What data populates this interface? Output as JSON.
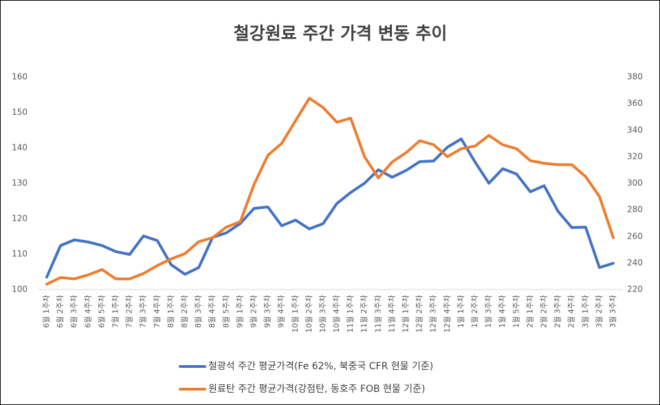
{
  "chart_data": {
    "type": "line",
    "title": "철강원료 주간 가격 변동 추이",
    "categories": [
      "6월 1주차",
      "6월 2주차",
      "6월 3주차",
      "6월 4주차",
      "6월 5주차",
      "7월 1주차",
      "7월 2주차",
      "7월 3주차",
      "7월 4주차",
      "8월 1주차",
      "8월 2주차",
      "8월 3주차",
      "8월 4주차",
      "8월 5주차",
      "9월 1주차",
      "9월 2주차",
      "9월 3주차",
      "9월 4주차",
      "10월 1주차",
      "10월 2주차",
      "10월 3주차",
      "10월 4주차",
      "11월 1주차",
      "11월 2주차",
      "11월 3주차",
      "11월 4주차",
      "12월 1주차",
      "12월 2주차",
      "12월 3주차",
      "12월 4주차",
      "1월 1주차",
      "1월 2주차",
      "1월 3주차",
      "1월 4주차",
      "1월 5주차",
      "2월 1주차",
      "2월 2주차",
      "2월 3주차",
      "2월 4주차",
      "3월 1주차",
      "3월 2주차",
      "3월 3주차"
    ],
    "series": [
      {
        "name": "철광석 주간 평균가격(Fe 62%, 북중국 CFR 현물 기준)",
        "color": "#4472c4",
        "axis": "y",
        "values": [
          103.5,
          112.4,
          114,
          113.4,
          112.4,
          110.7,
          109.9,
          115.1,
          113.8,
          107,
          104.3,
          106.2,
          114.7,
          116,
          118.6,
          122.9,
          123.3,
          118,
          119.6,
          117.1,
          118.6,
          124.3,
          127.4,
          130,
          133.8,
          131.7,
          133.6,
          136.1,
          136.3,
          140.2,
          142.5,
          136,
          130,
          134.1,
          132.6,
          127.6,
          129.3,
          122.1,
          117.5,
          117.6,
          106.2,
          107.4
        ]
      },
      {
        "name": "원료탄 주간 평균가격(강점탄, 동호주 FOB 현물 기준)",
        "color": "#ed7d31",
        "axis": "y2",
        "values": [
          224,
          229,
          228,
          231,
          235,
          228,
          228,
          232,
          238,
          243,
          247,
          256,
          259,
          267,
          271,
          299,
          321,
          330,
          347,
          364,
          357,
          346,
          349,
          320,
          304,
          316,
          323,
          332,
          329,
          320,
          326,
          328,
          336,
          329,
          326,
          317,
          315,
          314,
          314,
          305,
          290,
          259
        ]
      }
    ],
    "ylim": [
      100,
      160
    ],
    "yticks": [
      100,
      110,
      120,
      130,
      140,
      150,
      160
    ],
    "y2lim": [
      220,
      380
    ],
    "y2ticks": [
      220,
      240,
      260,
      280,
      300,
      320,
      340,
      360,
      380
    ],
    "grid": false,
    "legend": "bottom"
  }
}
